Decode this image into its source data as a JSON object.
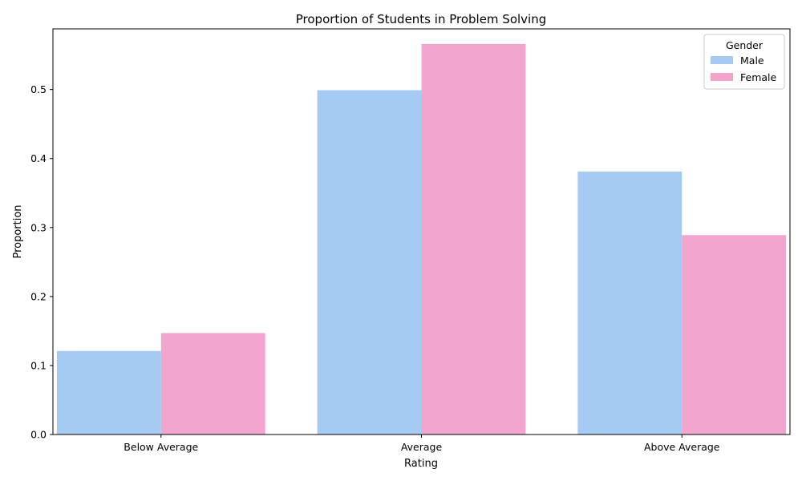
{
  "chart_data": {
    "type": "bar",
    "title": "Proportion of Students in Problem Solving",
    "xlabel": "Rating",
    "ylabel": "Proportion",
    "categories": [
      "Below Average",
      "Average",
      "Above Average"
    ],
    "series": [
      {
        "name": "Male",
        "values": [
          0.121,
          0.499,
          0.381
        ],
        "color": "#a6cbf3"
      },
      {
        "name": "Female",
        "values": [
          0.147,
          0.566,
          0.289
        ],
        "color": "#f2a6cd"
      }
    ],
    "yticks": [
      "0.0",
      "0.1",
      "0.2",
      "0.3",
      "0.4",
      "0.5"
    ],
    "ylim": [
      0,
      0.5879
    ],
    "grid": false,
    "legend": {
      "title": "Gender",
      "placement": "top-right"
    }
  }
}
